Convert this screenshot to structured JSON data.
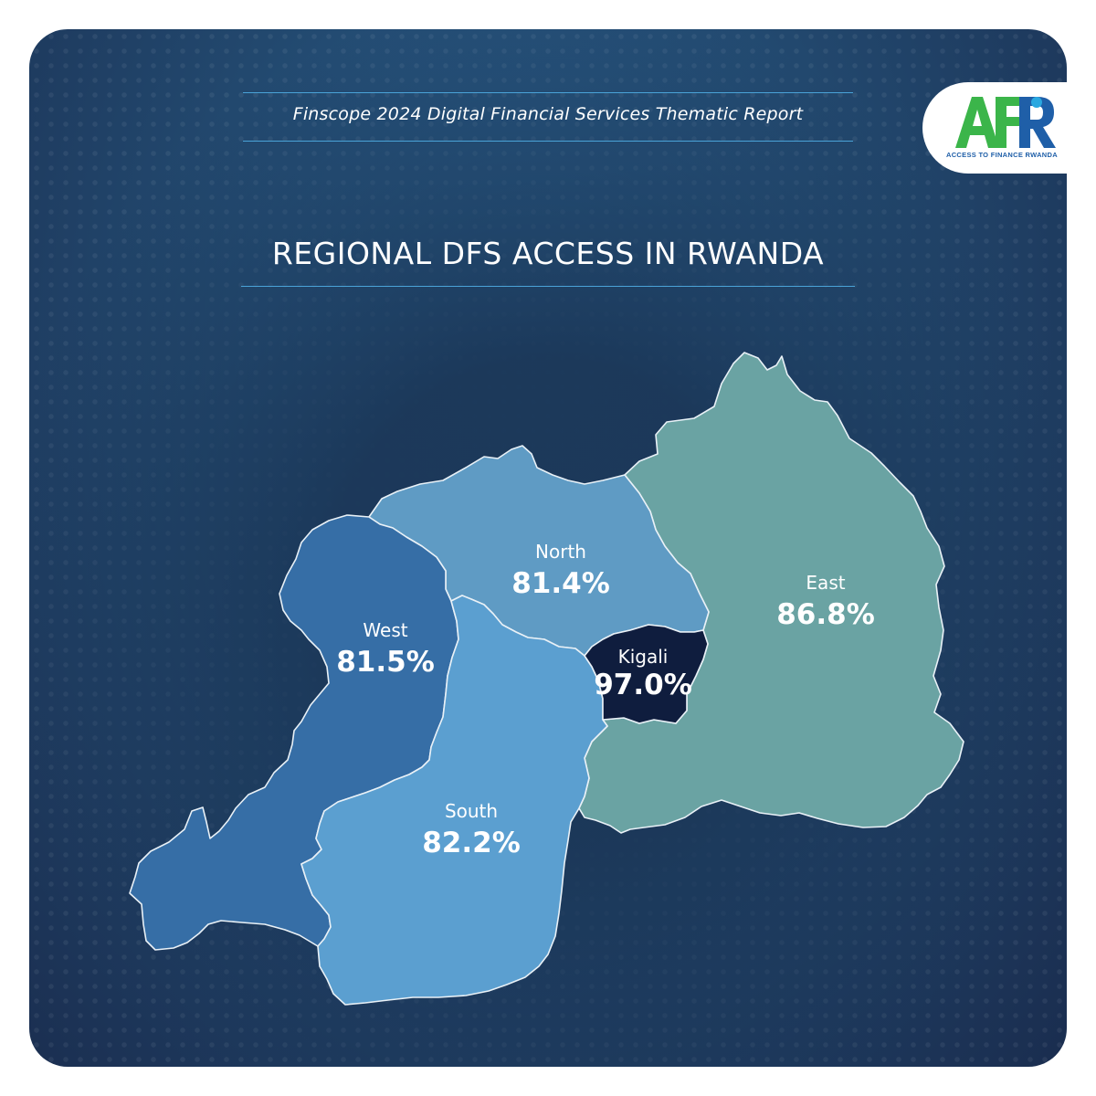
{
  "header": {
    "subtitle": "Finscope 2024 Digital Financial Services Thematic Report",
    "title": "REGIONAL DFS ACCESS IN RWANDA"
  },
  "logo": {
    "mark_text": "AFR",
    "tagline": "ACCESS TO FINANCE RWANDA",
    "colors": {
      "green": "#3bb54a",
      "blue": "#1f5fa8",
      "light_blue": "#2aa8e0"
    }
  },
  "map": {
    "regions": [
      {
        "name": "North",
        "value": "81.4%",
        "color": "#5f9bc4"
      },
      {
        "name": "East",
        "value": "86.8%",
        "color": "#6aa3a3"
      },
      {
        "name": "West",
        "value": "81.5%",
        "color": "#366ea6"
      },
      {
        "name": "South",
        "value": "82.2%",
        "color": "#5b9fd0"
      },
      {
        "name": "Kigali",
        "value": "97.0%",
        "color": "#0f1d3e"
      }
    ]
  },
  "theme": {
    "background": "#1f3f64",
    "accent_rule": "#4aa3d8"
  }
}
